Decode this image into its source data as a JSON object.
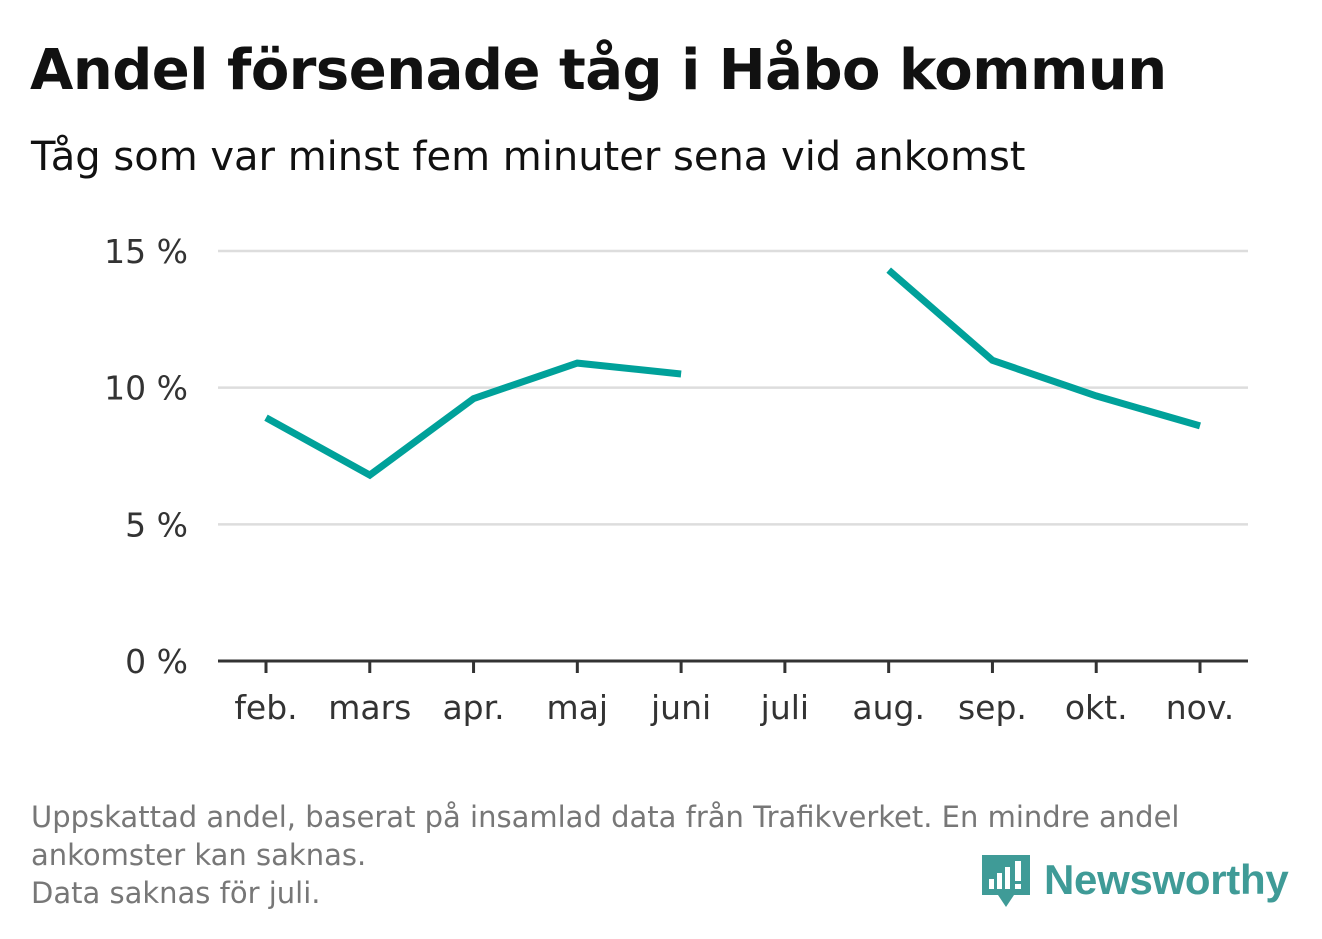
{
  "header": {
    "title": "Andel försenade tåg i Håbo kommun",
    "subtitle": "Tåg som var minst fem minuter sena vid ankomst"
  },
  "footer": {
    "note_line1": "Uppskattad andel, baserat på insamlad data från Trafikverket. En mindre andel",
    "note_line2": "ankomster kan saknas.",
    "note_line3": "Data saknas för juli."
  },
  "brand": {
    "name": "Newsworthy",
    "icon": "newsworthy-logo-icon",
    "color": "#3f9b97"
  },
  "colors": {
    "line": "#00a19a",
    "grid": "#dddddd",
    "axis": "#333333",
    "tick_text": "#333333"
  },
  "chart_data": {
    "type": "line",
    "title": "Andel försenade tåg i Håbo kommun",
    "subtitle": "Tåg som var minst fem minuter sena vid ankomst",
    "categories": [
      "feb.",
      "mars",
      "apr.",
      "maj",
      "juni",
      "juli",
      "aug.",
      "sep.",
      "okt.",
      "nov."
    ],
    "series": [
      {
        "values": [
          8.9,
          6.8,
          9.6,
          10.9,
          10.5,
          null,
          14.3,
          11.0,
          9.7,
          8.6
        ]
      }
    ],
    "ylim": [
      0,
      15
    ],
    "yticks": [
      0,
      5,
      10,
      15
    ],
    "ytick_labels": [
      "0 %",
      "5 %",
      "10 %",
      "15 %"
    ],
    "grid": true,
    "legend": "none"
  }
}
